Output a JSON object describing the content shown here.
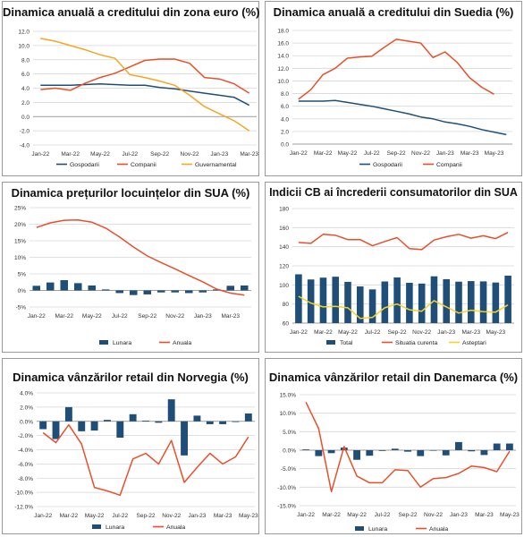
{
  "chart_data": [
    {
      "id": "euro",
      "type": "line",
      "title": "Dinamica anuală a creditului din zona euro (%)",
      "ylim": [
        -4,
        12
      ],
      "yticks": [
        "-4.0",
        "-2.0",
        "0.0",
        "2.0",
        "4.0",
        "6.0",
        "8.0",
        "10.0",
        "12.0"
      ],
      "xtick_labels": [
        "Jan-22",
        "Mar-22",
        "May-22",
        "Jul-22",
        "Sep-22",
        "Nov-22",
        "Jan-23",
        "Mar-23",
        "May-23"
      ],
      "grid": true,
      "legend": "bottom",
      "series": [
        {
          "name": "Gospodarii",
          "color": "#1f4e79",
          "values": [
            4.4,
            4.4,
            4.4,
            4.5,
            4.6,
            4.5,
            4.4,
            4.4,
            4.1,
            3.9,
            3.6,
            3.3,
            3.0,
            2.7,
            1.6
          ]
        },
        {
          "name": "Companii",
          "color": "#e8502a",
          "values": [
            3.8,
            4.0,
            3.7,
            4.7,
            5.5,
            6.1,
            7.0,
            7.9,
            8.1,
            8.1,
            7.5,
            5.5,
            5.3,
            4.6,
            3.3
          ]
        },
        {
          "name": "Guvernamental",
          "color": "#f5a623",
          "values": [
            11.0,
            10.6,
            10.0,
            9.4,
            8.7,
            8.2,
            5.9,
            5.5,
            5.0,
            4.4,
            3.0,
            1.4,
            0.4,
            -0.6,
            -2.0
          ]
        }
      ]
    },
    {
      "id": "suedia",
      "type": "line",
      "title": "Dinamica anuală a creditului din Suedia (%)",
      "ylim": [
        0,
        18
      ],
      "yticks": [
        "0.0",
        "2.0",
        "4.0",
        "6.0",
        "8.0",
        "10.0",
        "12.0",
        "14.0",
        "16.0",
        "18.0"
      ],
      "xtick_labels": [
        "Jan-22",
        "Mar-22",
        "May-22",
        "Jul-22",
        "Sep-22",
        "Nov-22",
        "Jan-23",
        "Mar-23",
        "May-23"
      ],
      "grid": true,
      "legend": "bottom",
      "series": [
        {
          "name": "Gospodarii",
          "color": "#1f4e79",
          "values": [
            6.8,
            6.8,
            6.8,
            6.9,
            6.6,
            6.3,
            6.0,
            5.6,
            5.2,
            4.8,
            4.3,
            4.0,
            3.5,
            3.2,
            2.8,
            2.3,
            1.9,
            1.5
          ]
        },
        {
          "name": "Companii",
          "color": "#e8502a",
          "values": [
            7.1,
            8.6,
            11.0,
            12.0,
            13.6,
            13.8,
            13.9,
            15.3,
            16.6,
            16.3,
            16.0,
            13.7,
            14.6,
            12.9,
            10.5,
            9.0,
            7.9
          ]
        }
      ]
    },
    {
      "id": "locuinte",
      "type": "bar+line",
      "title": "Dinamica prețurilor locuințelor din SUA (%)",
      "ylim": [
        -5,
        25
      ],
      "yticks": [
        "-5%",
        "0%",
        "5%",
        "10%",
        "15%",
        "20%",
        "25%"
      ],
      "xtick_labels": [
        "Jan-22",
        "Mar-22",
        "May-22",
        "Jul-22",
        "Sep-22",
        "Nov-22",
        "Jan-23",
        "Mar-23"
      ],
      "grid": true,
      "legend": "bottom",
      "bars": {
        "name": "Lunara",
        "color": "#1f4e79",
        "values": [
          1.4,
          2.4,
          3.1,
          2.2,
          1.5,
          0.3,
          -0.8,
          -1.4,
          -1.2,
          -0.6,
          -0.6,
          -0.8,
          -0.6,
          0.3,
          1.4,
          1.5
        ]
      },
      "line": {
        "name": "Anuala",
        "color": "#e8502a",
        "values": [
          19.0,
          20.4,
          21.2,
          21.3,
          20.6,
          18.8,
          16.1,
          13.1,
          10.4,
          8.4,
          6.5,
          4.5,
          2.6,
          0.4,
          -0.8,
          -1.4
        ]
      }
    },
    {
      "id": "incredere",
      "type": "bar+line",
      "title": "Indicii CB ai încrederii consumatorilor din SUA",
      "ylim": [
        60,
        180
      ],
      "yticks": [
        "60",
        "80",
        "100",
        "120",
        "140",
        "160",
        "180"
      ],
      "xtick_labels": [
        "Jan-22",
        "Mar-22",
        "May-22",
        "Jul-22",
        "Sep-22",
        "Nov-22",
        "Jan-23",
        "Mar-23",
        "May-23"
      ],
      "grid": true,
      "legend": "bottom",
      "bars": {
        "name": "Total",
        "color": "#1f4e79",
        "values": [
          111.1,
          105.7,
          107.6,
          108.6,
          103.2,
          98.4,
          95.3,
          103.6,
          107.8,
          102.2,
          101.4,
          109.0,
          106.0,
          103.4,
          104.0,
          103.7,
          102.5,
          109.7
        ]
      },
      "lines": [
        {
          "name": "Situatia curenta",
          "color": "#e8502a",
          "values": [
            144.5,
            143.5,
            153.0,
            152.0,
            147.5,
            147.5,
            141.0,
            145.5,
            149.5,
            138.0,
            137.0,
            147.0,
            150.5,
            153.0,
            149.0,
            151.5,
            148.5,
            155.0
          ]
        },
        {
          "name": "Asteptari",
          "color": "#f5d328",
          "values": [
            88.0,
            81.0,
            77.0,
            77.5,
            76.0,
            65.0,
            66.0,
            76.0,
            80.0,
            74.0,
            72.5,
            83.5,
            77.0,
            70.5,
            73.5,
            72.0,
            71.5,
            79.0
          ]
        }
      ]
    },
    {
      "id": "norvegia",
      "type": "bar+line",
      "title": "Dinamica vânzărilor retail din Norvegia (%)",
      "ylim": [
        -12,
        4
      ],
      "yticks": [
        "-12.0%",
        "-10.0%",
        "-8.0%",
        "-6.0%",
        "-4.0%",
        "-2.0%",
        "0.0%",
        "2.0%",
        "4.0%"
      ],
      "xtick_labels": [
        "Jan-22",
        "Mar-22",
        "May-22",
        "Jul-22",
        "Sep-22",
        "Nov-22",
        "Jan-23",
        "Mar-23",
        "May-23"
      ],
      "grid": true,
      "legend": "bottom",
      "bars": {
        "name": "Lunara",
        "color": "#1f4e79",
        "values": [
          -1.1,
          -2.5,
          2.0,
          -1.4,
          -1.3,
          0.2,
          -2.3,
          1.0,
          0.1,
          -0.2,
          3.1,
          -4.8,
          0.8,
          -0.4,
          -0.4,
          -0.1,
          1.1
        ]
      },
      "line": {
        "name": "Anuala",
        "color": "#e8502a",
        "values": [
          -1.6,
          -3.0,
          -0.5,
          -3.2,
          -9.3,
          -9.8,
          -10.4,
          -5.3,
          -4.5,
          -6.0,
          -2.7,
          -8.6,
          -6.5,
          -4.5,
          -6.0,
          -5.0,
          -2.2
        ]
      }
    },
    {
      "id": "danemarca",
      "type": "bar+line",
      "title": "Dinamica vânzărilor retail din Danemarca (%)",
      "ylim": [
        -15,
        15
      ],
      "yticks": [
        "-15.0%",
        "-10.0%",
        "-5.0%",
        "0.0%",
        "5.0%",
        "10.0%",
        "15.0%"
      ],
      "xtick_labels": [
        "Jan-22",
        "Mar-22",
        "May-22",
        "Jul-22",
        "Sep-22",
        "Nov-22",
        "Jan-23",
        "Mar-23",
        "May-23"
      ],
      "grid": true,
      "legend": "bottom",
      "bars": {
        "name": "Lunara",
        "color": "#1f4e79",
        "values": [
          0.2,
          -1.6,
          -0.8,
          0.7,
          -2.6,
          -1.5,
          -0.2,
          0.4,
          -0.4,
          -1.6,
          0.0,
          -1.4,
          2.2,
          -0.3,
          -1.3,
          1.8,
          1.8
        ]
      },
      "line": {
        "name": "Anuala",
        "color": "#e8502a",
        "values": [
          13.0,
          5.8,
          -11.2,
          1.0,
          -7.0,
          -8.8,
          -8.8,
          -5.3,
          -5.5,
          -10.0,
          -7.7,
          -7.4,
          -6.3,
          -4.3,
          -4.7,
          -5.8,
          -0.3
        ]
      }
    }
  ]
}
